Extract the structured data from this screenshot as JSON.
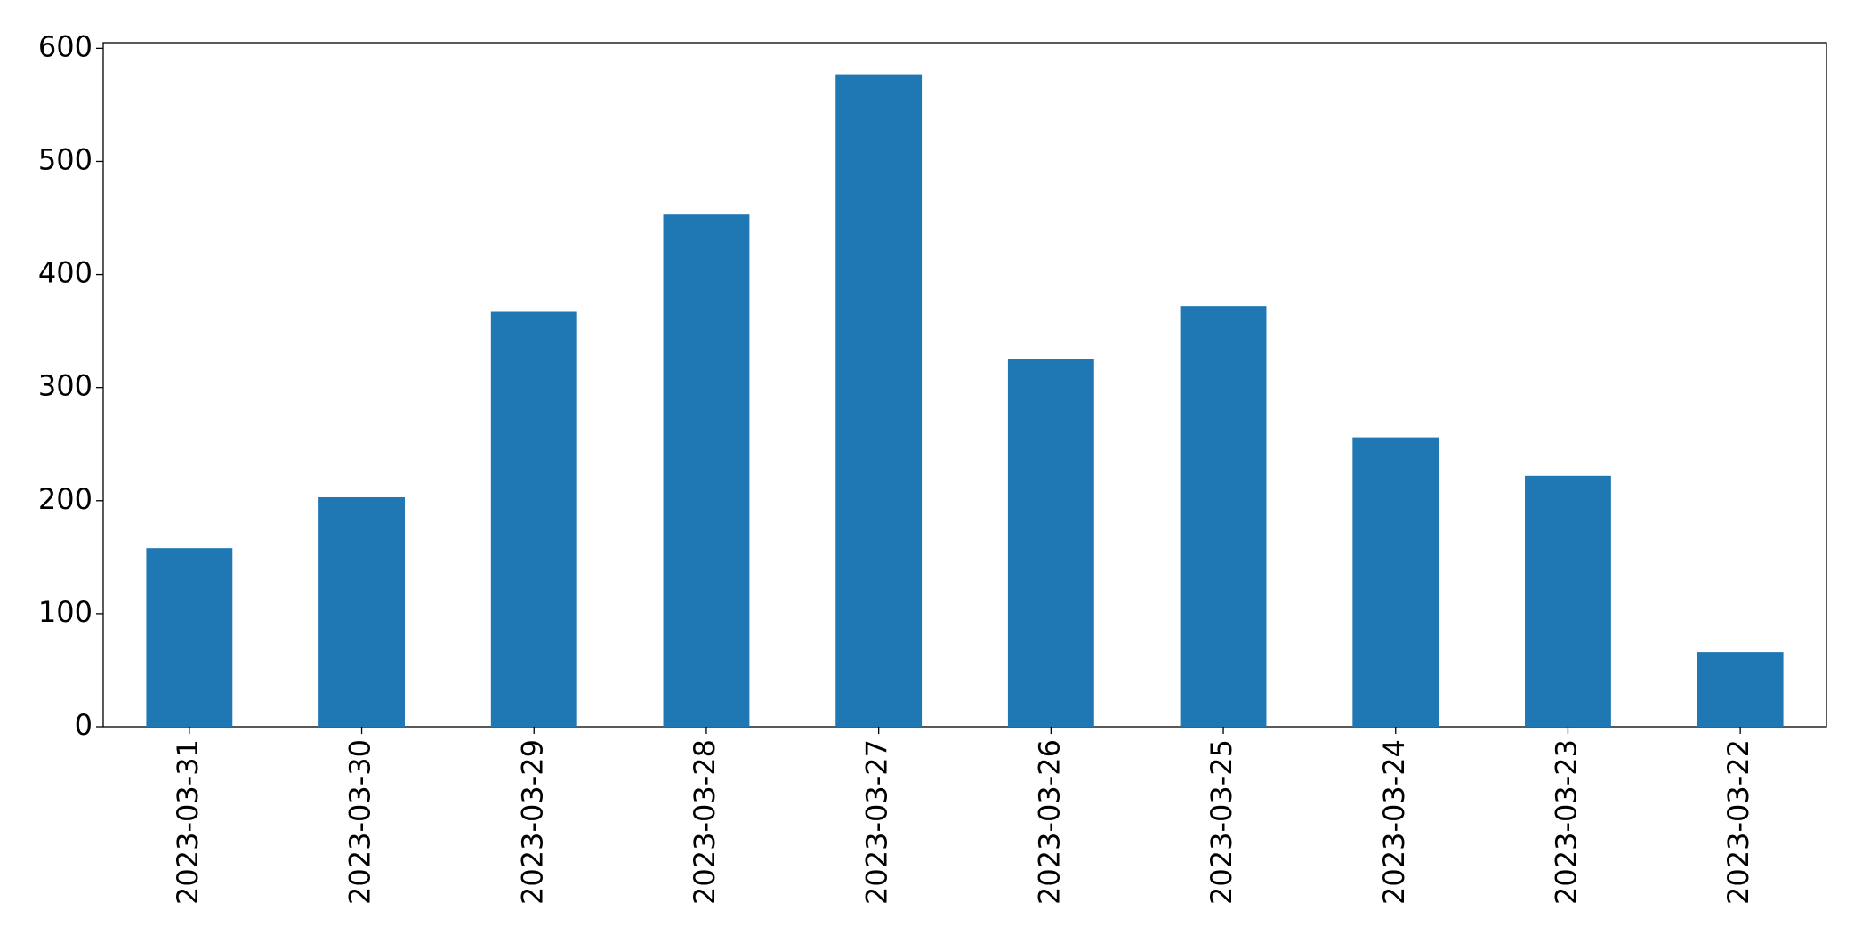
{
  "chart_data": {
    "type": "bar",
    "categories": [
      "2023-03-31",
      "2023-03-30",
      "2023-03-29",
      "2023-03-28",
      "2023-03-27",
      "2023-03-26",
      "2023-03-25",
      "2023-03-24",
      "2023-03-23",
      "2023-03-22"
    ],
    "values": [
      158,
      203,
      367,
      453,
      577,
      325,
      372,
      256,
      222,
      66
    ],
    "color": "#1f77b4",
    "ylim": [
      0,
      605
    ],
    "yticks": [
      0,
      100,
      200,
      300,
      400,
      500,
      600
    ],
    "grid": false
  }
}
